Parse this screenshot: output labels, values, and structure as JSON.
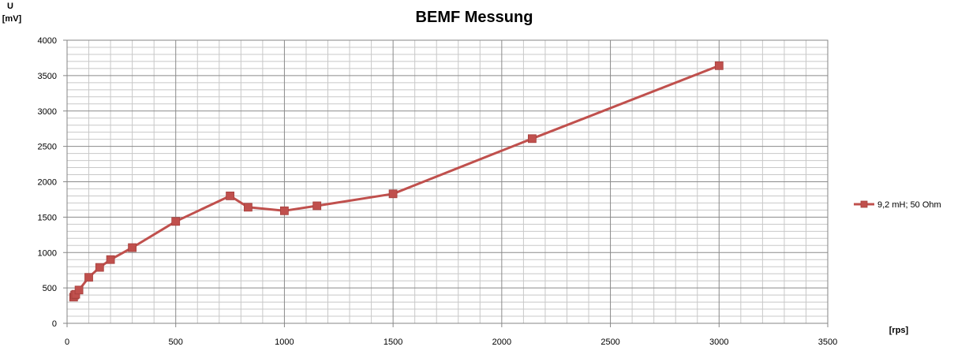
{
  "chart_data": {
    "type": "line",
    "title": "BEMF Messung",
    "ylabel_line1": "U",
    "ylabel_line2": "[mV]",
    "xlabel": "[rps]",
    "xlim": [
      0,
      3500
    ],
    "ylim": [
      0,
      4000
    ],
    "x_ticks": [
      0,
      500,
      1000,
      1500,
      2000,
      2500,
      3000,
      3500
    ],
    "y_ticks": [
      0,
      500,
      1000,
      1500,
      2000,
      2500,
      3000,
      3500,
      4000
    ],
    "grid": true,
    "legend_position": "right",
    "series": [
      {
        "name": "9,2 mH; 50 Ohm",
        "color": "#c0504d",
        "marker": "square",
        "x": [
          30,
          35,
          40,
          55,
          100,
          150,
          200,
          300,
          500,
          750,
          833,
          1000,
          1150,
          1500,
          2140,
          3000
        ],
        "y": [
          370,
          400,
          410,
          470,
          650,
          790,
          900,
          1070,
          1440,
          1800,
          1640,
          1590,
          1660,
          1830,
          2610,
          3640
        ]
      }
    ]
  }
}
